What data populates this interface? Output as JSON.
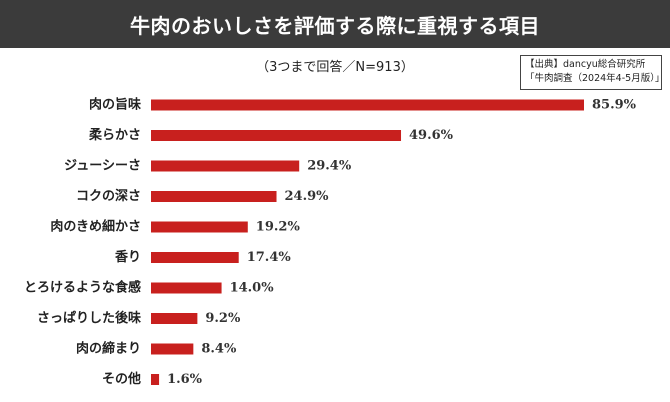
{
  "title": "牛肉のおいしさを評価する際に重視する項目",
  "subtitle": "（3つまで回答／N=913）",
  "source": {
    "line1": "【出典】dancyu総合研究所",
    "line2": "「牛肉調査（2024年4-5月版）」"
  },
  "colors": {
    "bar": "#c8201e",
    "title_bg": "#3b3b3b",
    "title_text": "#ffffff"
  },
  "chart_data": {
    "type": "bar",
    "orientation": "horizontal",
    "categories": [
      "肉の旨味",
      "柔らかさ",
      "ジューシーさ",
      "コクの深さ",
      "肉のきめ細かさ",
      "香り",
      "とろけるような食感",
      "さっぱりした後味",
      "肉の締まり",
      "その他"
    ],
    "values": [
      85.9,
      49.6,
      29.4,
      24.9,
      19.2,
      17.4,
      14.0,
      9.2,
      8.4,
      1.6
    ],
    "value_labels": [
      "85.9%",
      "49.6%",
      "29.4%",
      "24.9%",
      "19.2%",
      "17.4%",
      "14.0%",
      "9.2%",
      "8.4%",
      "1.6%"
    ],
    "unit": "%",
    "xlim": [
      0,
      85.9
    ],
    "grid": false,
    "legend": "none"
  }
}
